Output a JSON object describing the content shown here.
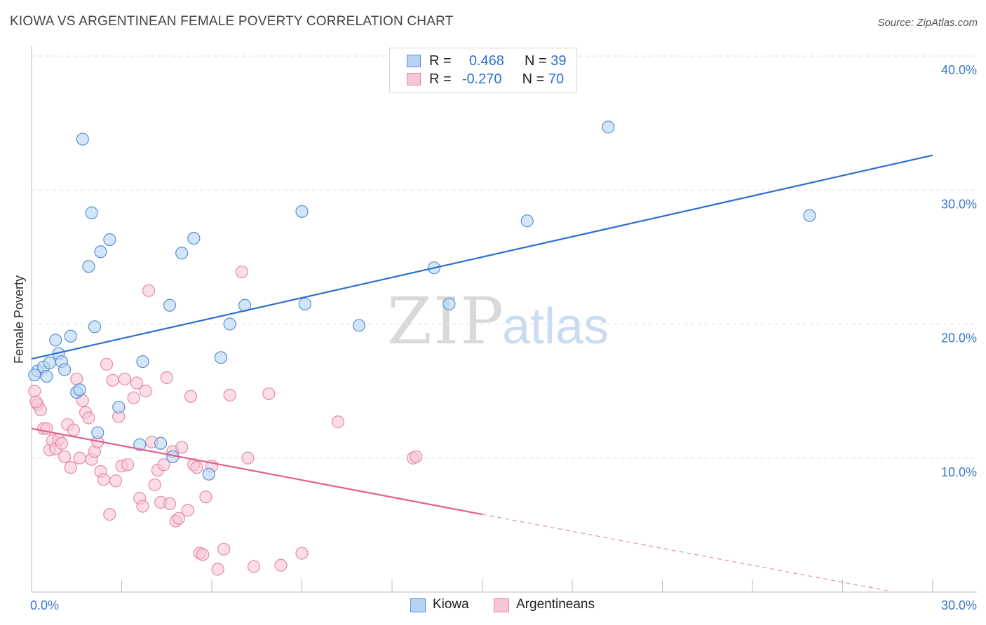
{
  "title": "KIOWA VS ARGENTINEAN FEMALE POVERTY CORRELATION CHART",
  "source": "Source: ZipAtlas.com",
  "watermark": {
    "zip": "ZIP",
    "atlas": "atlas"
  },
  "legend_top": {
    "rows": [
      {
        "r_label": "R =",
        "r_value": "0.468",
        "n_label": "N =",
        "n_value": "39"
      },
      {
        "r_label": "R =",
        "r_value": "-0.270",
        "n_label": "N =",
        "n_value": "70"
      }
    ]
  },
  "legend_bottom": {
    "kiowa": "Kiowa",
    "argentineans": "Argentineans"
  },
  "colors": {
    "kiowa_fill": "#b8d3f2",
    "kiowa_stroke": "#5a90d6",
    "kiowa_line": "#2d6fd0",
    "arg_fill": "#f7c6d4",
    "arg_stroke": "#e88aa8",
    "arg_line": "#e0608a",
    "grid": "#dddddd",
    "tick_text": "#3a78c9"
  },
  "chart_data": {
    "type": "scatter",
    "ylabel": "Female Poverty",
    "xlim": [
      0,
      30
    ],
    "ylim": [
      0,
      40
    ],
    "x_tick_labels": [
      "0.0%",
      "30.0%"
    ],
    "y_ticks": [
      10,
      20,
      30,
      40
    ],
    "y_tick_labels": [
      "10.0%",
      "20.0%",
      "30.0%",
      "40.0%"
    ],
    "grid": true,
    "series": [
      {
        "name": "Kiowa",
        "r": 0.468,
        "n": 39,
        "trend": {
          "x": [
            0,
            30
          ],
          "y": [
            17.4,
            32.6
          ]
        },
        "points": [
          [
            0.2,
            16.5
          ],
          [
            0.4,
            16.8
          ],
          [
            0.5,
            16.1
          ],
          [
            0.6,
            17.1
          ],
          [
            0.8,
            18.8
          ],
          [
            0.9,
            17.8
          ],
          [
            1.0,
            17.2
          ],
          [
            1.1,
            16.6
          ],
          [
            1.3,
            19.1
          ],
          [
            1.5,
            14.9
          ],
          [
            1.6,
            15.1
          ],
          [
            1.7,
            33.8
          ],
          [
            1.9,
            24.3
          ],
          [
            2.0,
            28.3
          ],
          [
            2.1,
            19.8
          ],
          [
            2.2,
            11.9
          ],
          [
            2.3,
            25.4
          ],
          [
            2.6,
            26.3
          ],
          [
            2.9,
            13.8
          ],
          [
            3.6,
            11.0
          ],
          [
            3.7,
            17.2
          ],
          [
            4.3,
            11.1
          ],
          [
            4.6,
            21.4
          ],
          [
            4.7,
            10.1
          ],
          [
            5.0,
            25.3
          ],
          [
            5.4,
            26.4
          ],
          [
            5.9,
            8.8
          ],
          [
            6.3,
            17.5
          ],
          [
            6.6,
            20.0
          ],
          [
            7.1,
            21.4
          ],
          [
            9.0,
            28.4
          ],
          [
            9.1,
            21.5
          ],
          [
            10.9,
            19.9
          ],
          [
            13.4,
            24.2
          ],
          [
            13.9,
            21.5
          ],
          [
            16.5,
            27.7
          ],
          [
            19.2,
            34.7
          ],
          [
            25.9,
            28.1
          ],
          [
            0.1,
            16.2
          ]
        ]
      },
      {
        "name": "Argentineans",
        "r": -0.27,
        "n": 70,
        "trend": {
          "x": [
            0,
            15
          ],
          "y": [
            12.2,
            5.8
          ]
        },
        "trend_dashed": {
          "x": [
            15,
            28.5
          ],
          "y": [
            5.8,
            0.1
          ]
        },
        "points": [
          [
            0.1,
            15.0
          ],
          [
            0.2,
            14.0
          ],
          [
            0.3,
            13.6
          ],
          [
            0.4,
            12.2
          ],
          [
            0.5,
            12.2
          ],
          [
            0.6,
            10.6
          ],
          [
            0.7,
            11.3
          ],
          [
            0.8,
            10.7
          ],
          [
            0.9,
            11.4
          ],
          [
            1.0,
            11.1
          ],
          [
            1.1,
            10.1
          ],
          [
            1.2,
            12.5
          ],
          [
            1.3,
            9.3
          ],
          [
            1.4,
            12.1
          ],
          [
            1.5,
            15.9
          ],
          [
            1.6,
            10.0
          ],
          [
            1.7,
            14.3
          ],
          [
            1.8,
            13.4
          ],
          [
            1.9,
            13.0
          ],
          [
            2.0,
            9.9
          ],
          [
            2.1,
            10.5
          ],
          [
            2.2,
            11.2
          ],
          [
            2.3,
            9.0
          ],
          [
            2.4,
            8.4
          ],
          [
            2.5,
            17.0
          ],
          [
            2.6,
            5.8
          ],
          [
            2.7,
            15.8
          ],
          [
            2.8,
            8.3
          ],
          [
            2.9,
            13.1
          ],
          [
            3.0,
            9.4
          ],
          [
            3.1,
            15.9
          ],
          [
            3.2,
            9.5
          ],
          [
            3.4,
            14.5
          ],
          [
            3.5,
            15.6
          ],
          [
            3.6,
            7.0
          ],
          [
            3.7,
            6.4
          ],
          [
            3.8,
            15.0
          ],
          [
            3.9,
            22.5
          ],
          [
            4.0,
            11.2
          ],
          [
            4.1,
            8.0
          ],
          [
            4.2,
            9.1
          ],
          [
            4.3,
            6.7
          ],
          [
            4.4,
            9.5
          ],
          [
            4.5,
            16.0
          ],
          [
            4.6,
            6.6
          ],
          [
            4.7,
            10.5
          ],
          [
            4.8,
            5.3
          ],
          [
            4.9,
            5.5
          ],
          [
            5.0,
            10.8
          ],
          [
            5.2,
            6.1
          ],
          [
            5.3,
            14.6
          ],
          [
            5.4,
            9.5
          ],
          [
            5.5,
            9.3
          ],
          [
            5.6,
            2.9
          ],
          [
            5.7,
            2.8
          ],
          [
            5.8,
            7.1
          ],
          [
            6.0,
            9.4
          ],
          [
            6.2,
            1.7
          ],
          [
            6.4,
            3.2
          ],
          [
            6.6,
            14.7
          ],
          [
            7.0,
            23.9
          ],
          [
            7.2,
            10.0
          ],
          [
            7.4,
            1.9
          ],
          [
            7.9,
            14.8
          ],
          [
            8.3,
            2.0
          ],
          [
            9.0,
            2.9
          ],
          [
            10.2,
            12.7
          ],
          [
            12.7,
            10.0
          ],
          [
            12.8,
            10.1
          ],
          [
            0.15,
            14.2
          ]
        ]
      }
    ]
  }
}
